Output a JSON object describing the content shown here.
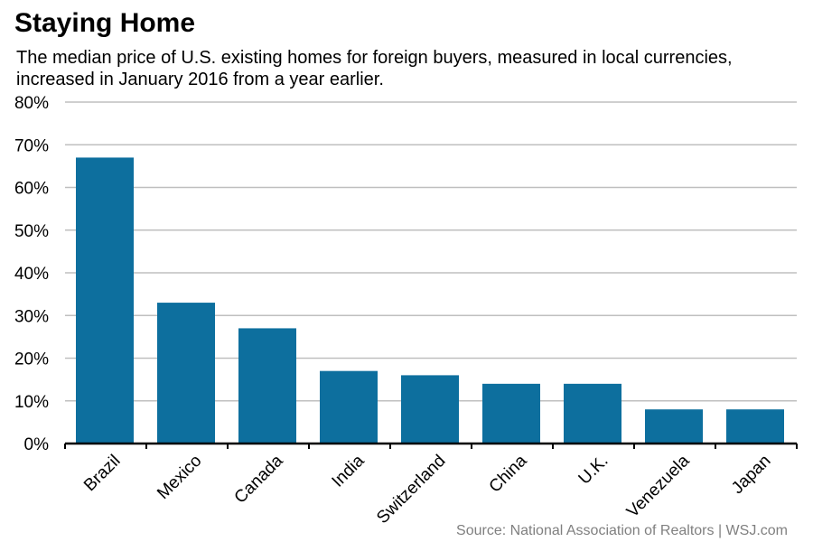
{
  "title": "Staying Home",
  "subtitle": "The median price of U.S. existing homes for foreign buyers, measured in local currencies, increased in January 2016 from a year earlier.",
  "source": "Source: National Association of Realtors  |  WSJ.com",
  "colors": {
    "bar": "#0d6f9e",
    "grid": "#bfbfbf",
    "axis": "#000000"
  },
  "chart_data": {
    "type": "bar",
    "categories": [
      "Brazil",
      "Mexico",
      "Canada",
      "India",
      "Switzerland",
      "China",
      "U.K.",
      "Venezuela",
      "Japan"
    ],
    "values": [
      67,
      33,
      27,
      17,
      16,
      14,
      14,
      8,
      8
    ],
    "ylim": [
      0,
      80
    ],
    "yticks": [
      0,
      10,
      20,
      30,
      40,
      50,
      60,
      70,
      80
    ],
    "ytick_labels": [
      "0%",
      "10%",
      "20%",
      "30%",
      "40%",
      "50%",
      "60%",
      "70%",
      "80%"
    ],
    "grid": true,
    "xlabel": "",
    "ylabel": ""
  }
}
